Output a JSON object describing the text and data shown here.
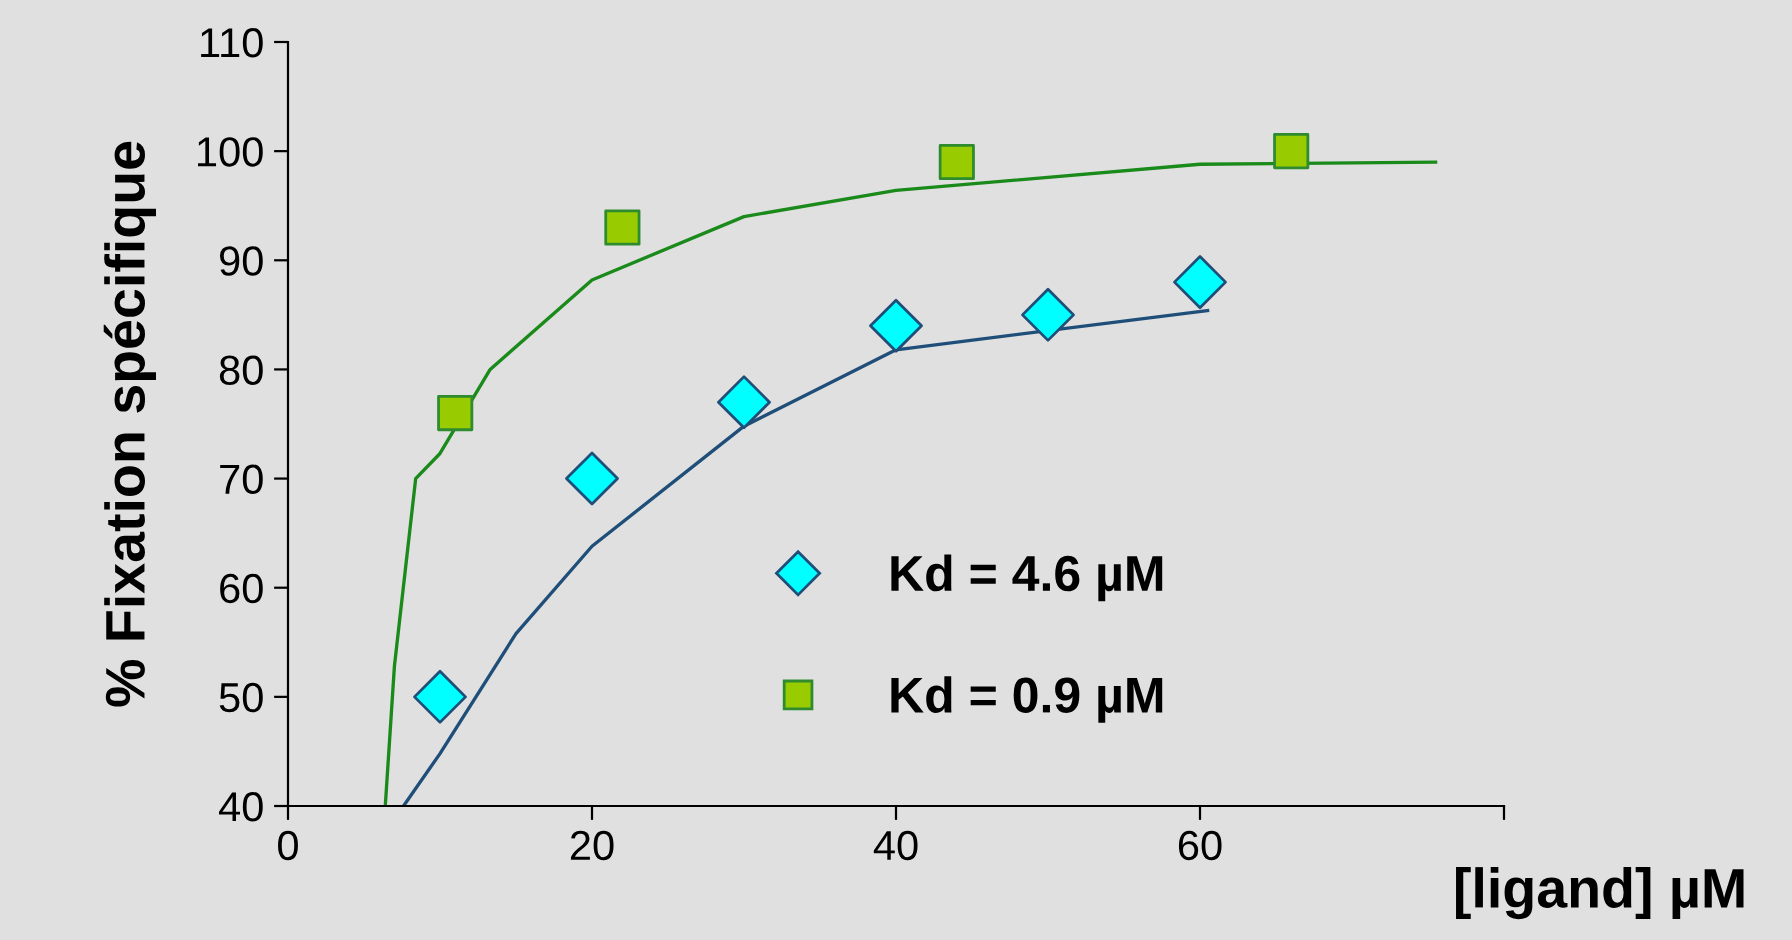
{
  "chart_data": {
    "type": "scatter",
    "xlabel": "[ligand] µM",
    "ylabel": "% Fixation spécifique",
    "xlim": [
      0,
      80
    ],
    "xticks": [
      0,
      20,
      40,
      60,
      {
        "value": 80,
        "label": null
      }
    ],
    "ylim": [
      40,
      110
    ],
    "yticks": [
      40,
      50,
      60,
      70,
      80,
      90,
      100,
      110
    ],
    "grid": false,
    "legend": "bottom",
    "series": [
      {
        "name": "Kd = 4.6 µM",
        "marker": "diamond",
        "color": "#00ffff",
        "x": [
          10,
          20,
          30,
          40,
          50,
          60
        ],
        "values": [
          50,
          70,
          77,
          84,
          85,
          88
        ]
      },
      {
        "name": "Kd = 0.9 µM",
        "marker": "square",
        "color": "#99cc00",
        "x": [
          11,
          22,
          44,
          66
        ],
        "values": [
          76,
          93,
          99,
          100
        ]
      },
      {
        "type": "line",
        "color": "#1f4e79",
        "x": [
          7.6,
          10,
          15,
          20,
          30,
          40,
          60.5
        ],
        "values": [
          40,
          44.8,
          55.8,
          63.8,
          74.8,
          81.8,
          85.4
        ]
      },
      {
        "type": "line",
        "color": "#1a8a1a",
        "x": [
          6.4,
          7,
          8.4,
          10,
          13.3,
          20,
          30,
          40,
          60,
          75.5
        ],
        "values": [
          40,
          52.8,
          70,
          72.3,
          80,
          88.2,
          94,
          96.4,
          98.8,
          99
        ]
      }
    ]
  }
}
